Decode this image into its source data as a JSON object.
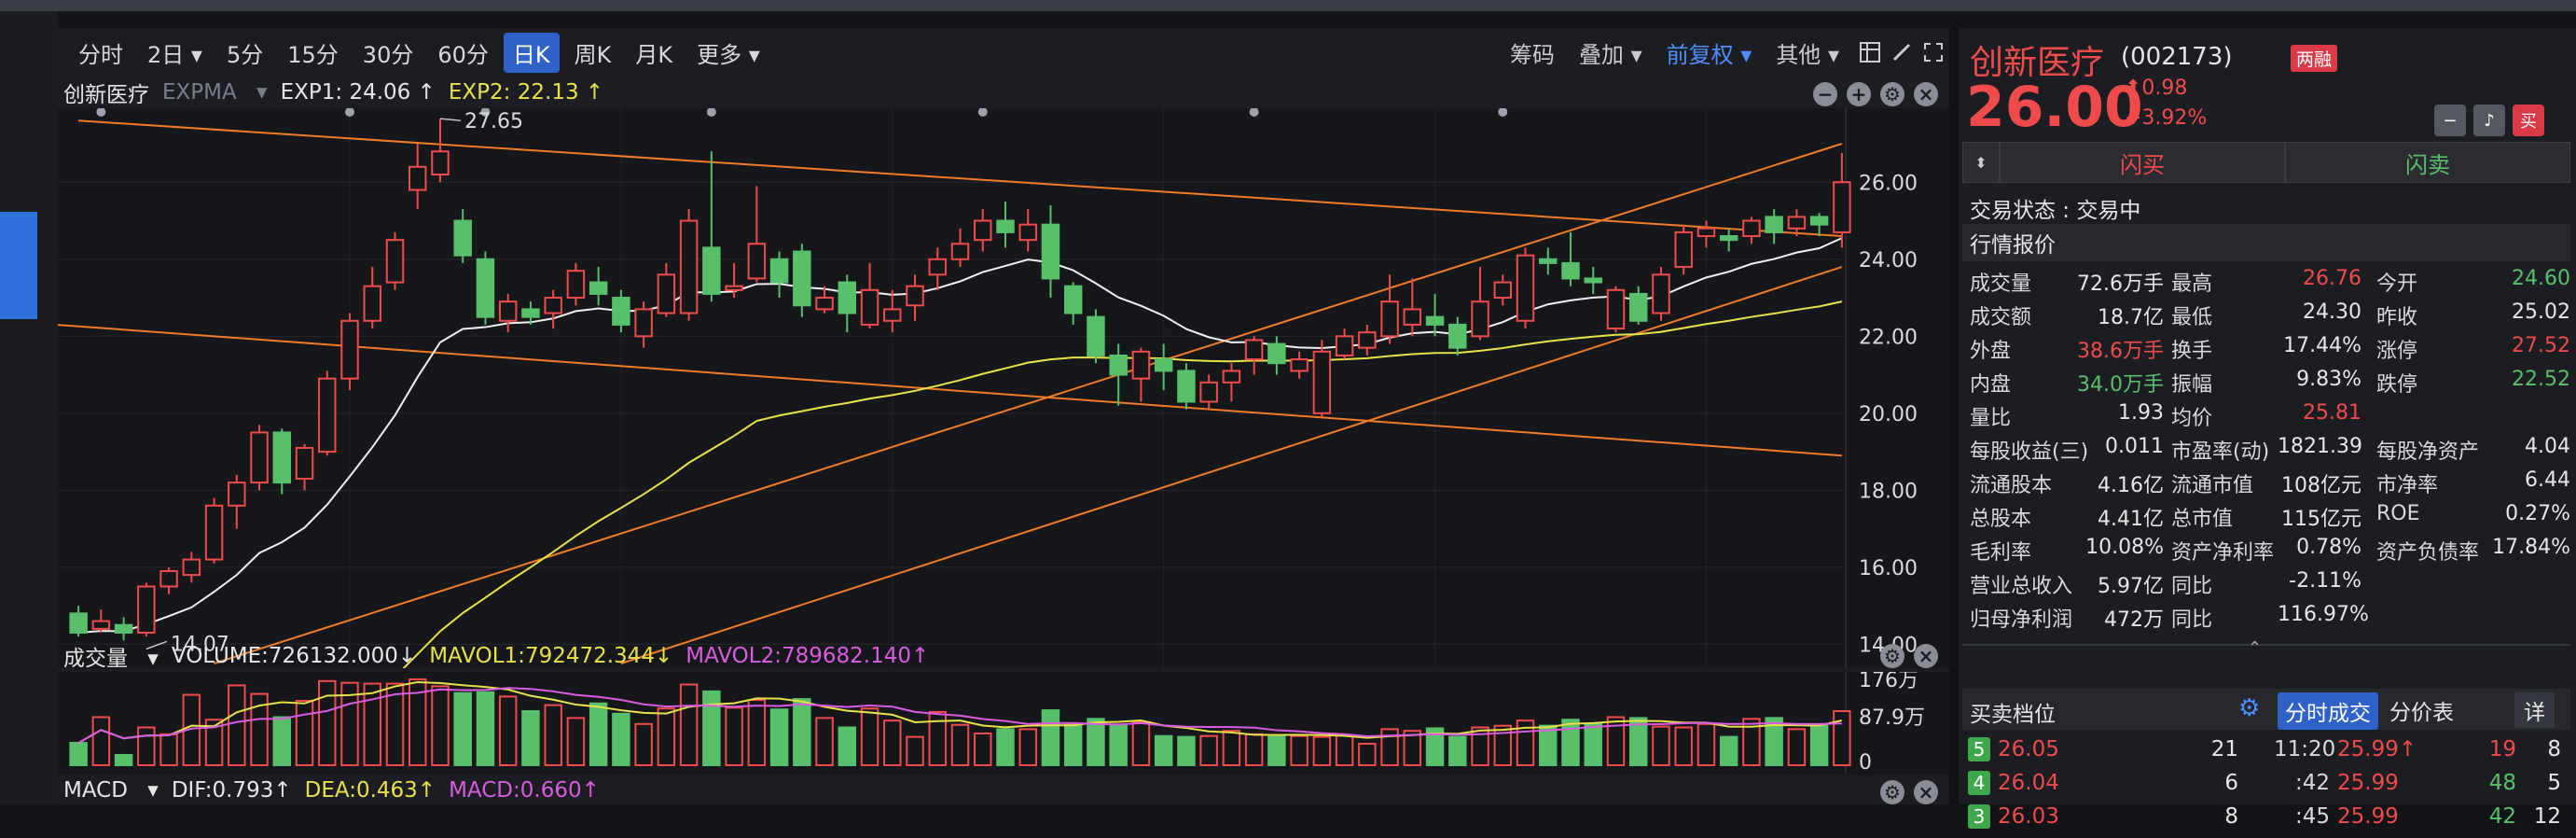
{
  "toolbar": {
    "periods": [
      "分时",
      "2日",
      "5分",
      "15分",
      "30分",
      "60分",
      "日K",
      "周K",
      "月K",
      "更多"
    ],
    "active": "日K",
    "right": [
      "筹码",
      "叠加",
      "前复权",
      "其他"
    ]
  },
  "kline": {
    "stock_name": "创新医疗",
    "indicator": "EXPMA",
    "exp1_label": "EXP1: 24.06 ↑",
    "exp2_label": "EXP2: 22.13 ↑",
    "y_ticks": [
      "26.00",
      "24.00",
      "22.00",
      "20.00",
      "18.00",
      "16.00",
      "14.00"
    ],
    "high_marker": "27.65",
    "low_marker": "14.07"
  },
  "volume": {
    "title": "成交量",
    "vol_label": "VOLUME:726132.000↓",
    "mavol1_label": "MAVOL1:792472.344↓",
    "mavol2_label": "MAVOL2:789682.140↑",
    "y_ticks": [
      "176万",
      "87.9万",
      "0"
    ]
  },
  "macd": {
    "title": "MACD",
    "dif_label": "DIF:0.793↑",
    "dea_label": "DEA:0.463↑",
    "macd_label": "MACD:0.660↑"
  },
  "chart_data": {
    "type": "candlestick",
    "y_range": [
      13.5,
      27.8
    ],
    "candles": [
      [
        14.8,
        14.3,
        15.0,
        14.2
      ],
      [
        14.4,
        14.6,
        14.9,
        14.3
      ],
      [
        14.5,
        14.3,
        14.7,
        14.1
      ],
      [
        14.3,
        15.5,
        15.6,
        14.2
      ],
      [
        15.5,
        15.9,
        16.0,
        15.3
      ],
      [
        15.8,
        16.2,
        16.4,
        15.6
      ],
      [
        16.2,
        17.6,
        17.8,
        16.1
      ],
      [
        17.6,
        18.2,
        18.4,
        17.0
      ],
      [
        18.2,
        19.5,
        19.7,
        18.0
      ],
      [
        19.5,
        18.2,
        19.6,
        17.9
      ],
      [
        18.3,
        19.1,
        19.2,
        18.0
      ],
      [
        19.0,
        20.9,
        21.1,
        18.9
      ],
      [
        20.9,
        22.4,
        22.6,
        20.6
      ],
      [
        22.4,
        23.3,
        23.8,
        22.2
      ],
      [
        23.4,
        24.5,
        24.7,
        23.2
      ],
      [
        25.8,
        26.4,
        27.0,
        25.3
      ],
      [
        26.2,
        26.8,
        27.65,
        26.0
      ],
      [
        25.0,
        24.1,
        25.3,
        23.9
      ],
      [
        24.0,
        22.5,
        24.2,
        22.3
      ],
      [
        22.4,
        22.9,
        23.1,
        22.1
      ],
      [
        22.7,
        22.5,
        22.9,
        22.3
      ],
      [
        22.6,
        23.0,
        23.2,
        22.2
      ],
      [
        23.0,
        23.7,
        23.9,
        22.8
      ],
      [
        23.4,
        23.1,
        23.8,
        22.8
      ],
      [
        23.0,
        22.3,
        23.2,
        22.1
      ],
      [
        22.0,
        22.7,
        22.9,
        21.7
      ],
      [
        22.6,
        23.6,
        23.9,
        22.5
      ],
      [
        22.6,
        25.0,
        25.3,
        22.4
      ],
      [
        24.3,
        23.1,
        26.8,
        22.9
      ],
      [
        23.2,
        23.3,
        23.9,
        23.0
      ],
      [
        23.5,
        24.4,
        25.9,
        23.4
      ],
      [
        24.0,
        23.4,
        24.2,
        23.0
      ],
      [
        24.2,
        22.8,
        24.4,
        22.5
      ],
      [
        22.7,
        23.0,
        23.3,
        22.6
      ],
      [
        23.4,
        22.6,
        23.6,
        22.1
      ],
      [
        22.3,
        23.2,
        23.9,
        22.2
      ],
      [
        22.4,
        22.7,
        23.2,
        22.1
      ],
      [
        22.8,
        23.3,
        23.6,
        22.4
      ],
      [
        23.6,
        24.0,
        24.3,
        23.2
      ],
      [
        24.0,
        24.4,
        24.8,
        23.8
      ],
      [
        24.5,
        25.0,
        25.3,
        24.2
      ],
      [
        25.0,
        24.7,
        25.5,
        24.3
      ],
      [
        24.5,
        24.9,
        25.3,
        24.2
      ],
      [
        24.9,
        23.5,
        25.4,
        23.0
      ],
      [
        23.3,
        22.6,
        23.4,
        22.3
      ],
      [
        22.5,
        21.5,
        22.7,
        21.3
      ],
      [
        21.5,
        21.0,
        21.8,
        20.2
      ],
      [
        20.9,
        21.6,
        21.7,
        20.3
      ],
      [
        21.4,
        21.1,
        21.8,
        20.6
      ],
      [
        21.1,
        20.3,
        21.3,
        20.1
      ],
      [
        20.3,
        20.8,
        21.0,
        20.1
      ],
      [
        20.8,
        21.1,
        21.3,
        20.3
      ],
      [
        21.4,
        21.9,
        22.0,
        21.0
      ],
      [
        21.8,
        21.3,
        22.0,
        21.0
      ],
      [
        21.1,
        21.4,
        21.6,
        20.9
      ],
      [
        20.0,
        21.6,
        21.9,
        19.9
      ],
      [
        21.5,
        22.0,
        22.2,
        21.4
      ],
      [
        21.7,
        22.1,
        22.3,
        21.5
      ],
      [
        22.0,
        22.9,
        23.6,
        21.8
      ],
      [
        22.3,
        22.7,
        23.5,
        22.0
      ],
      [
        22.5,
        22.3,
        23.1,
        22.0
      ],
      [
        22.3,
        21.7,
        22.5,
        21.5
      ],
      [
        22.0,
        22.9,
        23.8,
        21.9
      ],
      [
        23.0,
        23.4,
        23.6,
        22.8
      ],
      [
        22.4,
        24.1,
        24.3,
        22.2
      ],
      [
        24.0,
        23.9,
        24.3,
        23.6
      ],
      [
        23.9,
        23.5,
        24.7,
        23.3
      ],
      [
        23.5,
        23.4,
        23.8,
        23.1
      ],
      [
        22.2,
        23.2,
        23.3,
        22.1
      ],
      [
        23.1,
        22.4,
        23.3,
        22.3
      ],
      [
        22.6,
        23.6,
        23.8,
        22.4
      ],
      [
        23.8,
        24.7,
        24.9,
        23.6
      ],
      [
        24.6,
        24.8,
        25.0,
        24.3
      ],
      [
        24.6,
        24.5,
        24.8,
        24.2
      ],
      [
        24.6,
        25.0,
        25.1,
        24.4
      ],
      [
        25.1,
        24.7,
        25.3,
        24.4
      ],
      [
        24.8,
        25.1,
        25.3,
        24.6
      ],
      [
        25.1,
        24.9,
        25.2,
        24.6
      ],
      [
        24.7,
        26.0,
        26.76,
        24.3
      ]
    ],
    "volume_bars": [
      0.26,
      0.56,
      0.12,
      0.44,
      0.36,
      0.82,
      0.53,
      0.93,
      0.83,
      0.56,
      0.75,
      0.98,
      0.96,
      0.95,
      0.95,
      1.0,
      0.92,
      0.84,
      0.85,
      0.8,
      0.63,
      0.7,
      0.55,
      0.72,
      0.6,
      0.48,
      0.66,
      0.94,
      0.86,
      0.67,
      0.76,
      0.65,
      0.77,
      0.55,
      0.44,
      0.66,
      0.52,
      0.33,
      0.62,
      0.47,
      0.37,
      0.42,
      0.42,
      0.64,
      0.47,
      0.54,
      0.46,
      0.5,
      0.34,
      0.33,
      0.34,
      0.4,
      0.36,
      0.33,
      0.34,
      0.33,
      0.35,
      0.25,
      0.42,
      0.4,
      0.43,
      0.33,
      0.44,
      0.46,
      0.52,
      0.46,
      0.53,
      0.48,
      0.56,
      0.55,
      0.45,
      0.44,
      0.48,
      0.33,
      0.54,
      0.55,
      0.42,
      0.47,
      0.63
    ],
    "trend_lines": [
      {
        "color": "#f07c2a",
        "from": [
          0,
          27.6
        ],
        "to": [
          78,
          24.6
        ]
      },
      {
        "color": "#f07c2a",
        "from": [
          -1,
          22.3
        ],
        "to": [
          78,
          18.9
        ]
      },
      {
        "color": "#f07c2a",
        "from": [
          6,
          13.5
        ],
        "to": [
          78,
          27.0
        ]
      },
      {
        "color": "#f07c2a",
        "from": [
          24,
          13.5
        ],
        "to": [
          78,
          23.8
        ]
      }
    ]
  },
  "quote": {
    "name": "创新医疗",
    "code": "(002173)",
    "badge": "两融",
    "price": "26.00",
    "change": "⬆0.98",
    "pct": "+3.92%",
    "fast_buy": "闪买",
    "fast_sell": "闪卖",
    "status": "交易状态 : 交易中",
    "section_title": "行情报价",
    "rows": [
      [
        "成交量",
        "72.6万手",
        "最高",
        "26.76",
        "今开",
        "24.60"
      ],
      [
        "成交额",
        "18.7亿",
        "最低",
        "24.30",
        "昨收",
        "25.02"
      ],
      [
        "外盘",
        "38.6万手",
        "换手",
        "17.44%",
        "涨停",
        "27.52"
      ],
      [
        "内盘",
        "34.0万手",
        "振幅",
        "9.83%",
        "跌停",
        "22.52"
      ],
      [
        "量比",
        "1.93",
        "均价",
        "25.81",
        "",
        ""
      ]
    ],
    "fund_rows": [
      [
        "每股收益(三)",
        "0.011",
        "市盈率(动)",
        "1821.39",
        "每股净资产",
        "4.04"
      ],
      [
        "流通股本",
        "4.16亿",
        "流通市值",
        "108亿元",
        "市净率",
        "6.44"
      ],
      [
        "总股本",
        "4.41亿",
        "总市值",
        "115亿元",
        "ROE",
        "0.27%"
      ],
      [
        "毛利率",
        "10.08%",
        "资产净利率",
        "0.78%",
        "资产负债率",
        "17.84%"
      ],
      [
        "营业总收入",
        "5.97亿",
        "同比",
        "-2.11%",
        "",
        ""
      ],
      [
        "归母净利润",
        "472万",
        "同比",
        "116.97%",
        "",
        ""
      ]
    ]
  },
  "orderbook": {
    "title": "买卖档位",
    "tab_active": "分时成交",
    "tab_other": "分价表",
    "tab_detail": "详",
    "sells": [
      {
        "level": "5",
        "price": "26.05",
        "vol": "21"
      },
      {
        "level": "4",
        "price": "26.04",
        "vol": "6"
      },
      {
        "level": "3",
        "price": "26.03",
        "vol": "8"
      }
    ],
    "ticks": [
      {
        "time": "11:20",
        "price": "25.99↑",
        "vol": "19",
        "n": "8"
      },
      {
        "time": ":42",
        "price": "25.99",
        "vol": "48",
        "n": "5"
      },
      {
        "time": ":45",
        "price": "25.99",
        "vol": "42",
        "n": "12"
      }
    ]
  }
}
